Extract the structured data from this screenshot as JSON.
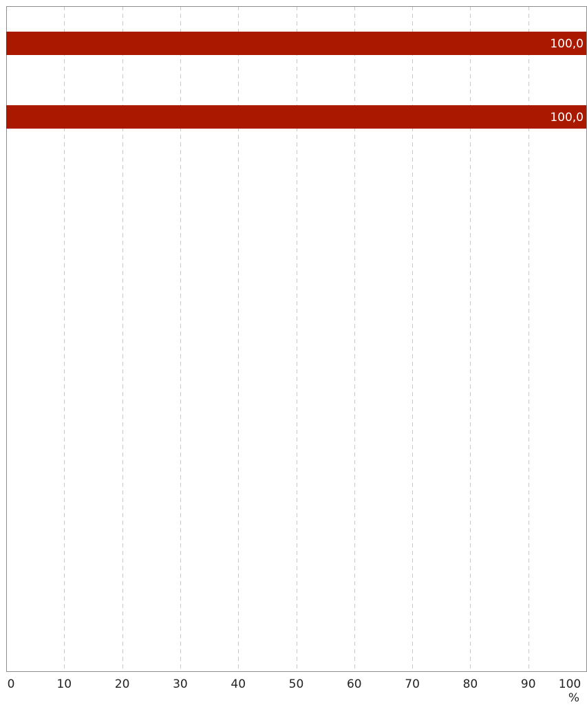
{
  "chart_data": {
    "type": "bar",
    "orientation": "horizontal",
    "values": [
      100.0,
      100.0
    ],
    "data_labels": [
      "100,0",
      "100,0"
    ],
    "bar_color": "#aa1800",
    "xlim": [
      0,
      100
    ],
    "x_ticks": [
      "0",
      "10",
      "20",
      "30",
      "40",
      "50",
      "60",
      "70",
      "80",
      "90",
      "100"
    ],
    "x_unit": "%",
    "grid": "vertical dashed",
    "legend": "none"
  }
}
